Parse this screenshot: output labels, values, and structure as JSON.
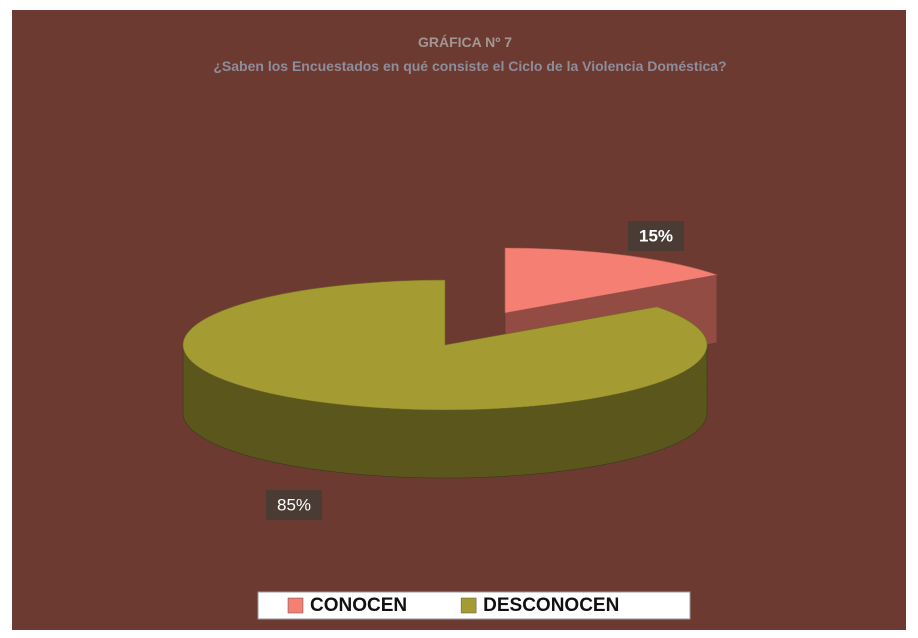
{
  "chart_data": {
    "type": "pie",
    "title": "GRÁFICA Nº 7",
    "subtitle": "¿Saben los Encuestados en qué consiste el Ciclo de la Violencia Doméstica?",
    "categories": [
      "CONOCEN",
      "DESCONOCEN"
    ],
    "values": [
      15,
      85
    ],
    "value_labels": [
      "15%",
      "85%"
    ],
    "colors": [
      "#f47f72",
      "#a49c32"
    ],
    "legend": "bottom"
  }
}
